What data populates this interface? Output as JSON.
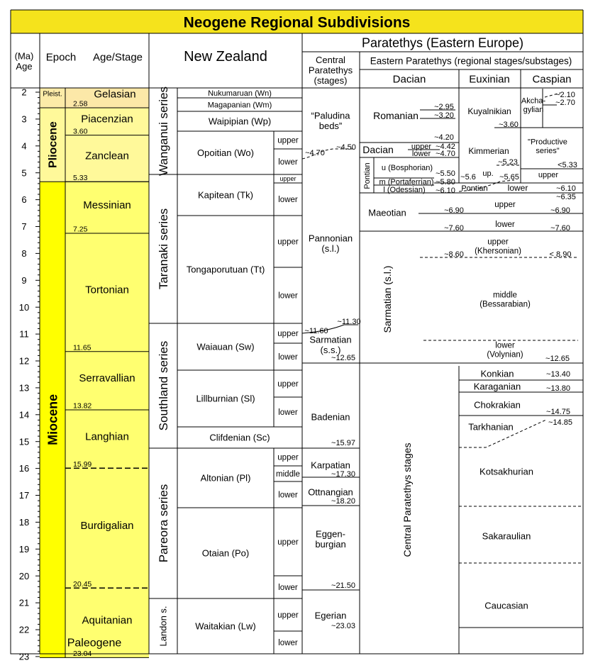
{
  "title": "Neogene Regional Subdivisions",
  "colors": {
    "title_bg": "#F5E31C",
    "pliocene": "#FFF99A",
    "miocene": "#FFFF00",
    "pleist": "#FCEBA8",
    "gelasian": "#FCE8A8",
    "pliocene_stage": "#FFF99A",
    "miocene_stage": "#FFFF70",
    "paleogene": "#FA8A5E"
  },
  "headers": {
    "age": "(Ma)\nAge",
    "epoch": "Epoch",
    "stage": "Age/Stage",
    "nz": "New Zealand",
    "paratethys": "Paratethys (Eastern Europe)",
    "central": "Central\nParatethys\n(stages)",
    "eastern": "Eastern Paratethys (regional stages/substages)",
    "dacian": "Dacian",
    "euxinian": "Euxinian",
    "caspian": "Caspian"
  },
  "ages": [
    "2",
    "3",
    "4",
    "5",
    "6",
    "7",
    "8",
    "9",
    "10",
    "11",
    "12",
    "13",
    "14",
    "15",
    "16",
    "17",
    "18",
    "19",
    "20",
    "21",
    "22",
    "23"
  ],
  "epochs": {
    "pleist": "Pleist.",
    "pliocene": "Pliocene",
    "miocene": "Miocene",
    "paleogene": "Paleogene"
  },
  "stages": [
    {
      "name": "Gelasian",
      "age": "2.58"
    },
    {
      "name": "Piacenzian",
      "age": "3.60"
    },
    {
      "name": "Zanclean",
      "age": "5.33"
    },
    {
      "name": "Messinian",
      "age": "7.25"
    },
    {
      "name": "Tortonian",
      "age": "11.65"
    },
    {
      "name": "Serravallian",
      "age": "13.82"
    },
    {
      "name": "Langhian",
      "age": "15.99"
    },
    {
      "name": "Burdigalian",
      "age": "20.45"
    },
    {
      "name": "Aquitanian",
      "age": "23.04"
    }
  ],
  "nz_series": [
    "Wanganui series",
    "Taranaki series",
    "Southland series",
    "Pareora series",
    "Landon s."
  ],
  "nz_stages": [
    "Nukumaruan (Wn)",
    "Magapanian (Wm)",
    "Waipipian (Wp)",
    "Opoitian (Wo)",
    "Kapitean (Tk)",
    "Tongaporutuan (Tt)",
    "Waiauan (Sw)",
    "Lillburnian (Sl)",
    "Clifdenian (Sc)",
    "Altonian (Pl)",
    "Otaian (Po)",
    "Waitakian (Lw)"
  ],
  "nz_sub": {
    "upper": "upper",
    "lower": "lower",
    "middle": "middle"
  },
  "central": {
    "paludina": "“Paludina\nbeds”",
    "pannonian": "Pannonian\n(s.l.)",
    "sarmatian_ss": "Sarmatian\n(s.s.)",
    "badenian": "Badenian",
    "karpatian": "Karpatian",
    "ottnangian": "Ottnangian",
    "eggenburgian": "Eggen-\nburgian",
    "egerian": "Egerian",
    "ages": [
      "~4.70",
      "~4.50",
      "~11.60",
      "~11.30",
      "~12.65",
      "~15.97",
      "~17.30",
      "~18.20",
      "~21.50",
      "~23.03"
    ]
  },
  "dacian": {
    "romanian": "Romanian",
    "dacian": "Dacian",
    "dacian_sub": [
      "upper",
      "lower"
    ],
    "pontian": "Pontian",
    "pontian_subs": [
      "u (Bosphorian)",
      "m (Portaferrian)",
      "l (Odessian)"
    ],
    "maeotian": "Maeotian",
    "sarmatian_sl": "Sarmatian (s.l.)",
    "ages": [
      "~2.95",
      "~3.20",
      "~4.20",
      "~4.42",
      "~4.70",
      "~5.50",
      "~5.80",
      "~6.10",
      "~6.90",
      "~7.60",
      "~8.60"
    ]
  },
  "euxinian": {
    "kuyalnikian": "Kuyalnikian",
    "kimmerian": "Kimmerian",
    "pontian": "Pontian",
    "up": "up.",
    "ages": [
      "~3.60",
      "~5.23",
      "~5.6",
      "~5.65"
    ]
  },
  "caspian": {
    "akchagylian": "Akcha-\ngylian",
    "productive": "\"Productive\nseries\"",
    "upper": "upper",
    "ages": [
      "~2.10",
      "~2.70",
      "<5.33"
    ]
  },
  "eastern_lower": {
    "euxcas_labels": [
      "lower",
      "upper",
      "lower",
      "upper\n(Khersonian)",
      "middle\n(Bessarabian)",
      "lower\n(Volynian)"
    ],
    "ages": [
      "~6.10",
      "~6.35",
      "~6.90",
      "~7.60",
      "< 8.90",
      "~12.65"
    ]
  },
  "central_stages_label": "Central Paratethys stages",
  "lower_caspian": {
    "konkian": "Konkian",
    "karaganian": "Karaganian",
    "chokrakian": "Chokrakian",
    "tarkhanian": "Tarkhanian",
    "kotsakhurian": "Kotsakhurian",
    "sakaraulian": "Sakaraulian",
    "caucasian": "Caucasian",
    "ages": [
      "~13.40",
      "~13.80",
      "~14.75",
      "~14.85"
    ]
  }
}
